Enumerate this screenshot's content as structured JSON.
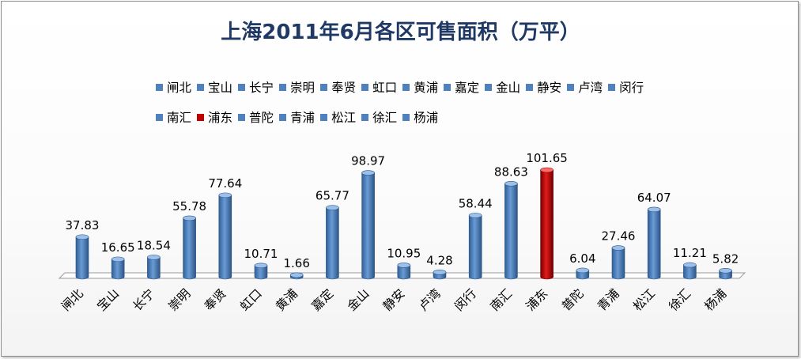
{
  "chart_data": {
    "type": "bar",
    "title": "上海2011年6月各区可售面积（万平）",
    "categories": [
      "闸北",
      "宝山",
      "长宁",
      "崇明",
      "奉贤",
      "虹口",
      "黄浦",
      "嘉定",
      "金山",
      "静安",
      "卢湾",
      "闵行",
      "南汇",
      "浦东",
      "普陀",
      "青浦",
      "松江",
      "徐汇",
      "杨浦"
    ],
    "values": [
      37.83,
      16.65,
      18.54,
      55.78,
      77.64,
      10.71,
      1.66,
      65.77,
      98.97,
      10.95,
      4.28,
      58.44,
      88.63,
      101.65,
      6.04,
      27.46,
      64.07,
      11.21,
      5.82
    ],
    "value_labels": [
      "37.83",
      "16.65",
      "18.54",
      "55.78",
      "77.64",
      "10.71",
      "1.66",
      "65.77",
      "98.97",
      "10.95",
      "4.28",
      "58.44",
      "88.63",
      "101.65",
      "6.04",
      "27.46",
      "64.07",
      "11.21",
      "5.82"
    ],
    "highlight": [
      "浦东"
    ],
    "colors": {
      "default": "#4f81bd",
      "highlight": "#c00000"
    },
    "legend_position": "top",
    "grid": false
  }
}
